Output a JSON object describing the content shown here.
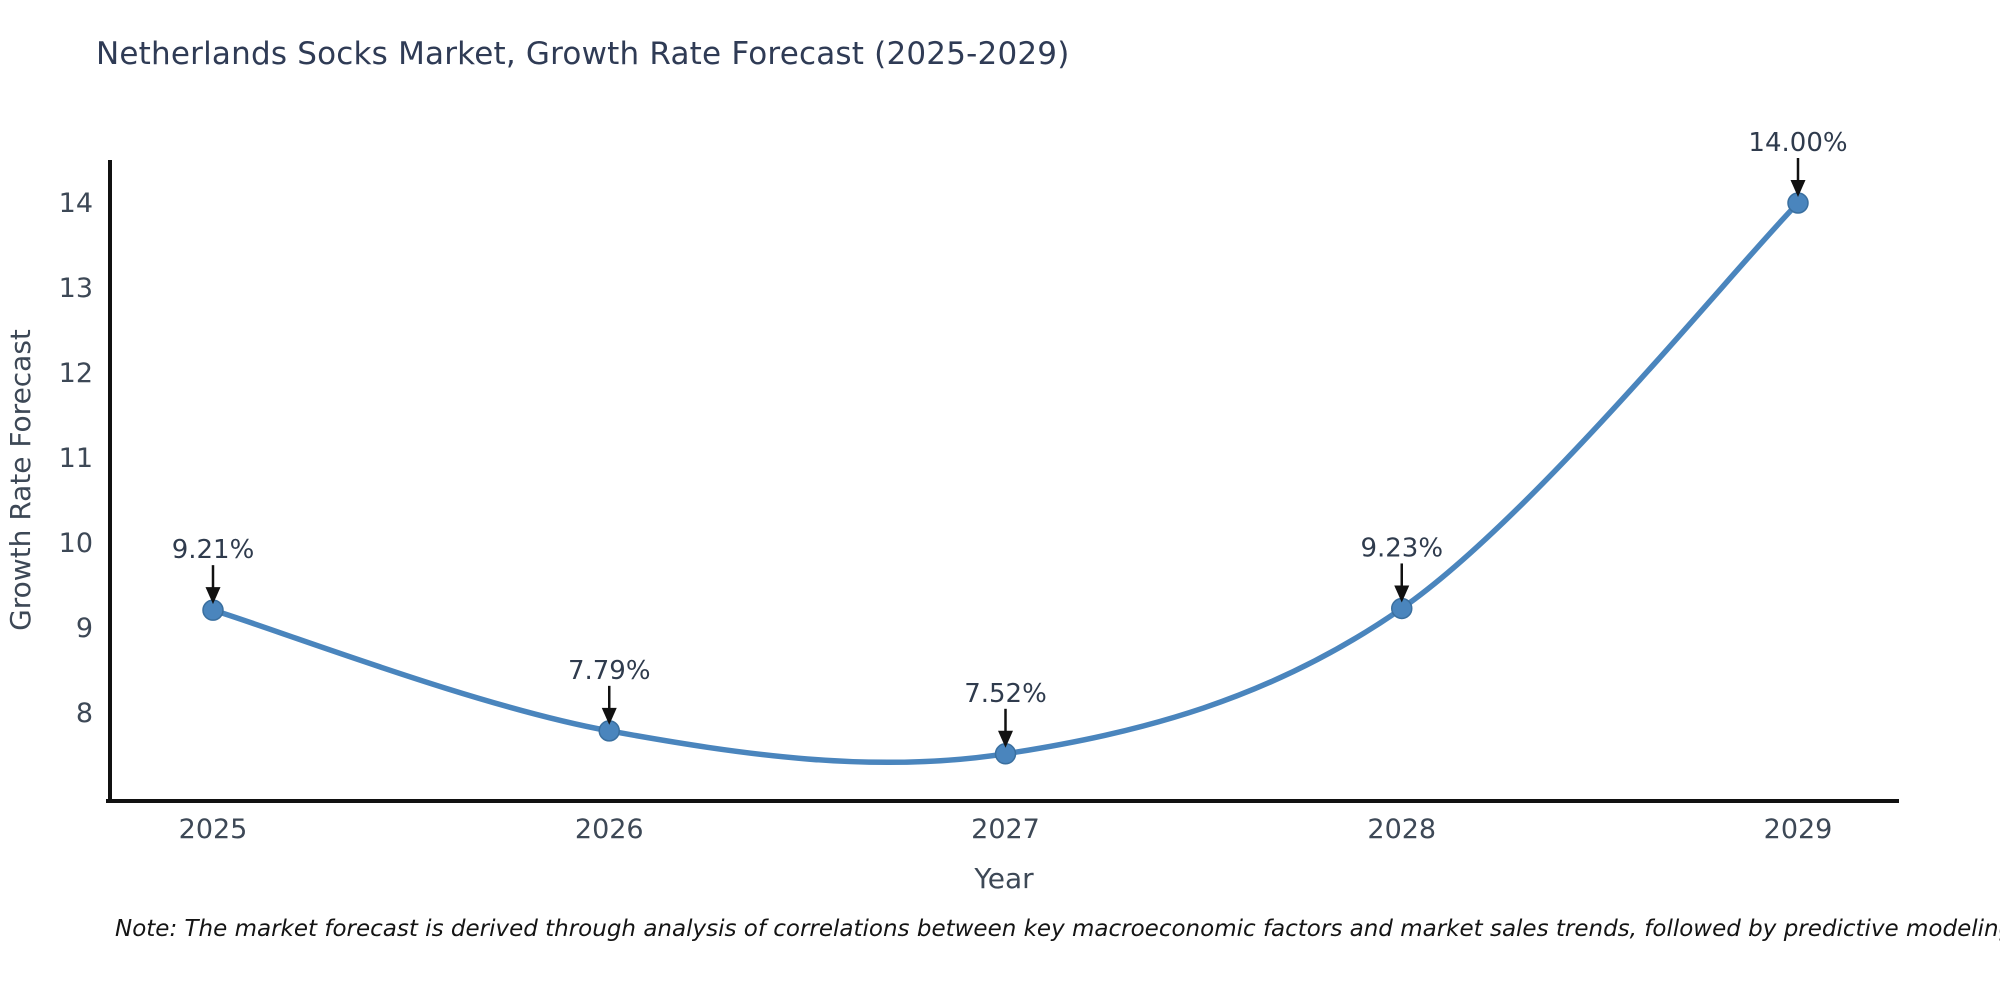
{
  "title": "Netherlands Socks Market, Growth Rate Forecast (2025-2029)",
  "note": "Note: The market forecast is derived through analysis of correlations between key macroeconomic factors and market sales trends, followed by predictive modeling to project future sales.",
  "chart_data": {
    "type": "line",
    "title": "Netherlands Socks Market, Growth Rate Forecast (2025-2029)",
    "categories": [
      "2025",
      "2026",
      "2027",
      "2028",
      "2029"
    ],
    "values": [
      9.21,
      7.79,
      7.52,
      9.23,
      14.0
    ],
    "point_labels": [
      "9.21%",
      "7.79%",
      "7.52%",
      "9.23%",
      "14.00%"
    ],
    "series_name": "Growth Rate Forecast",
    "xlabel": "Year",
    "ylabel": "Growth Rate Forecast",
    "yticks": [
      "8",
      "9",
      "10",
      "11",
      "12",
      "13",
      "14"
    ],
    "ytick_values": [
      8,
      9,
      10,
      11,
      12,
      13,
      14
    ],
    "ylim": [
      7.0,
      14.5
    ],
    "grid": false,
    "legend": "none",
    "curve_style": "smooth-spline",
    "annotations": "value labels with downward black arrows above each point",
    "line_color": "#4a85bd",
    "marker_color": "#4a85bd",
    "marker_edge_color": "#3a6f9f",
    "arrow_color": "#111111",
    "axis_line_color": "#111111",
    "text_color": "#3d4856",
    "title_color": "#2f3b55",
    "background_color": "#ffffff"
  }
}
